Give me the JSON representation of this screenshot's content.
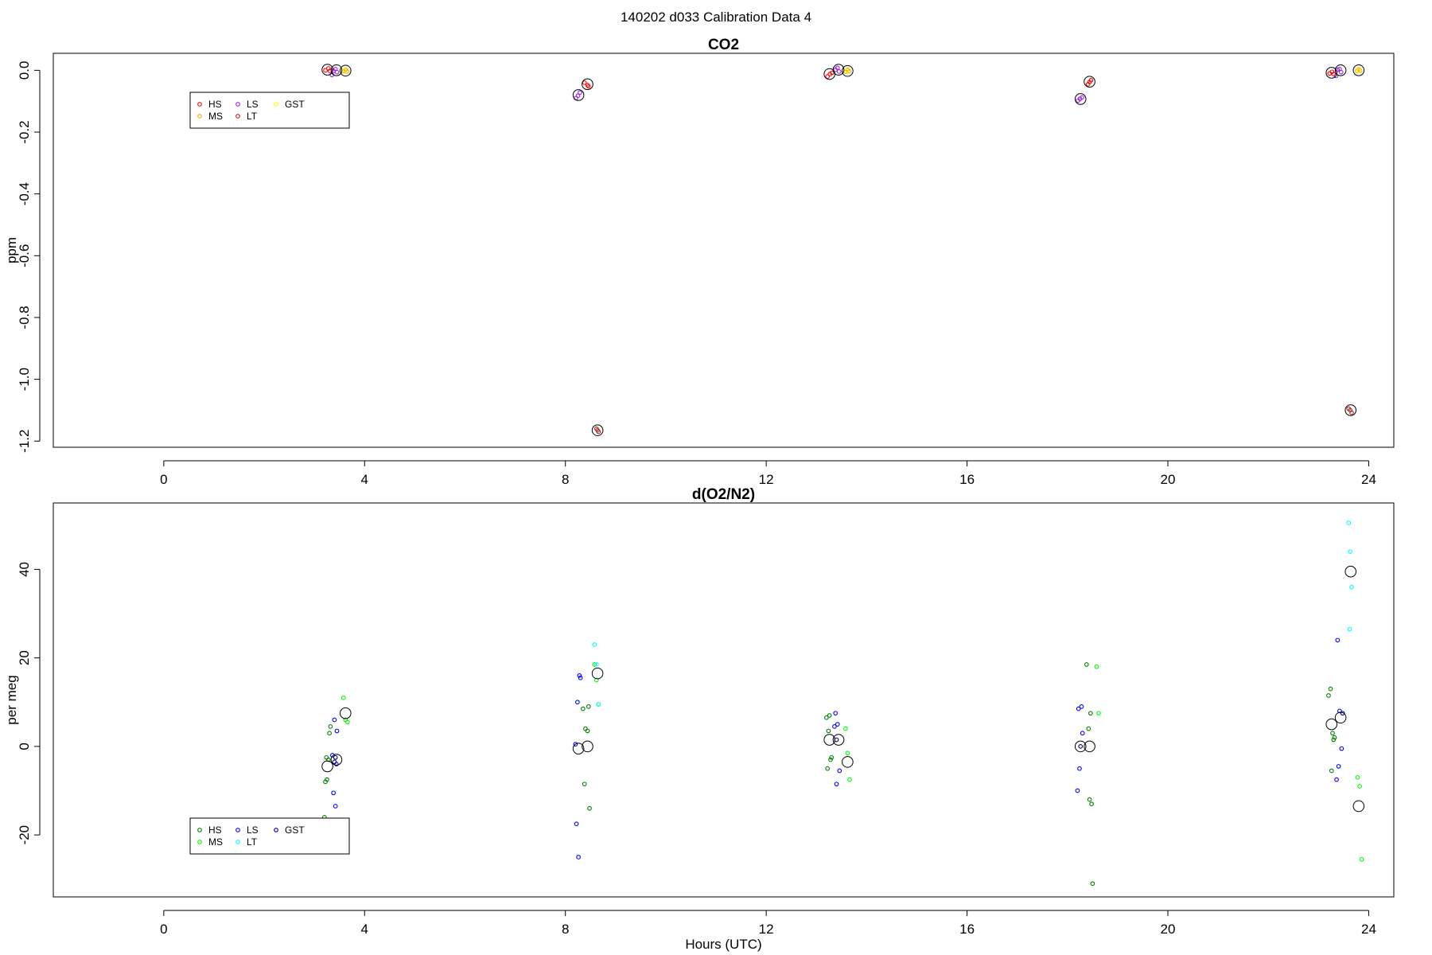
{
  "figure": {
    "title": "140202   d033   Calibration Data 4"
  },
  "chart_data": [
    {
      "type": "scatter",
      "title": "CO2",
      "xlabel": "",
      "ylabel": "ppm",
      "xlim": [
        -2.2,
        24.5
      ],
      "ylim": [
        -1.22,
        0.055
      ],
      "xticks": [
        0,
        4,
        8,
        12,
        16,
        20,
        24
      ],
      "xtick_labels": [
        "0",
        "4",
        "8",
        "12",
        "16",
        "20",
        "24"
      ],
      "yticks": [
        0.0,
        -0.2,
        -0.4,
        -0.6,
        -0.8,
        -1.0,
        -1.2
      ],
      "ytick_labels": [
        "0.0",
        "-0.2",
        "-0.4",
        "-0.6",
        "-0.8",
        "-1.0",
        "-1.2"
      ],
      "grid": false,
      "legend": {
        "placement": "upper-left",
        "entries": [
          {
            "label": "HS",
            "color": "#ff0000"
          },
          {
            "label": "MS",
            "color": "#ffa500"
          },
          {
            "label": "LS",
            "color": "#a020f0"
          },
          {
            "label": "LT",
            "color": "#b22222"
          },
          {
            "label": "GST",
            "color": "#ffff00"
          }
        ]
      },
      "series": [
        {
          "name": "HS",
          "color": "#ff0000",
          "x": [
            3.22,
            3.28,
            3.31,
            8.38,
            8.44,
            8.46,
            13.22,
            13.27,
            13.31,
            18.41,
            18.44,
            18.47,
            23.22,
            23.27,
            23.3
          ],
          "y": [
            0.0,
            0.006,
            -0.002,
            -0.04,
            -0.048,
            -0.052,
            -0.02,
            -0.012,
            -0.008,
            -0.045,
            -0.038,
            -0.032,
            -0.01,
            -0.005,
            -0.012
          ]
        },
        {
          "name": "MS",
          "color": "#ffa500",
          "x": [
            3.58,
            3.62,
            3.65,
            13.58,
            13.62,
            13.65,
            23.77,
            23.8,
            23.83
          ],
          "y": [
            -0.003,
            0.002,
            -0.004,
            -0.005,
            0.002,
            -0.003,
            -0.002,
            0.003,
            -0.001
          ]
        },
        {
          "name": "LS",
          "color": "#a020f0",
          "x": [
            3.38,
            3.42,
            3.45,
            3.35,
            8.21,
            8.25,
            8.29,
            13.38,
            13.42,
            13.45,
            18.21,
            18.25,
            18.29,
            23.38,
            23.42,
            23.45,
            23.35
          ],
          "y": [
            -0.002,
            0.004,
            -0.006,
            -0.015,
            -0.09,
            -0.082,
            -0.072,
            0.002,
            0.008,
            -0.004,
            -0.098,
            -0.092,
            -0.088,
            0.002,
            0.004,
            -0.006,
            -0.018
          ]
        },
        {
          "name": "LT",
          "color": "#b22222",
          "x": [
            8.62,
            8.64,
            8.66,
            23.6,
            23.63,
            23.66
          ],
          "y": [
            -1.16,
            -1.165,
            -1.17,
            -1.095,
            -1.1,
            -1.108
          ]
        },
        {
          "name": "GST",
          "color": "#ffff00",
          "x": [
            3.6,
            13.6,
            23.8
          ],
          "y": [
            0.0,
            -0.001,
            0.0
          ]
        }
      ],
      "means": {
        "x": [
          3.26,
          3.44,
          3.62,
          8.26,
          8.44,
          8.64,
          13.26,
          13.44,
          13.62,
          18.26,
          18.44,
          23.26,
          23.44,
          23.64,
          23.8
        ],
        "y": [
          0.002,
          0.0,
          -0.001,
          -0.08,
          -0.045,
          -1.165,
          -0.012,
          0.002,
          -0.002,
          -0.093,
          -0.037,
          -0.008,
          0.0,
          -1.1,
          0.0
        ]
      }
    },
    {
      "type": "scatter",
      "title": "d(O2/N2)",
      "xlabel": "Hours (UTC)",
      "ylabel": "per meg",
      "xlim": [
        -2.2,
        24.5
      ],
      "ylim": [
        -34,
        55
      ],
      "xticks": [
        0,
        4,
        8,
        12,
        16,
        20,
        24
      ],
      "xtick_labels": [
        "0",
        "4",
        "8",
        "12",
        "16",
        "20",
        "24"
      ],
      "yticks": [
        -20,
        0,
        20,
        40
      ],
      "ytick_labels": [
        "-20",
        "0",
        "20",
        "40"
      ],
      "grid": false,
      "legend": {
        "placement": "lower-left",
        "entries": [
          {
            "label": "HS",
            "color": "#008000"
          },
          {
            "label": "MS",
            "color": "#00ff00"
          },
          {
            "label": "LS",
            "color": "#0000ff"
          },
          {
            "label": "LT",
            "color": "#00ffff"
          },
          {
            "label": "GST",
            "color": "#000080"
          }
        ]
      },
      "series": [
        {
          "name": "HS",
          "color": "#008000",
          "x": [
            3.2,
            3.22,
            3.25,
            3.28,
            3.3,
            3.32,
            3.24,
            8.35,
            8.4,
            8.44,
            8.48,
            8.38,
            8.46,
            13.2,
            13.24,
            13.28,
            13.3,
            13.22,
            13.26,
            18.38,
            18.42,
            18.46,
            18.5,
            18.44,
            18.48,
            23.2,
            23.24,
            23.28,
            23.32,
            23.3,
            23.26
          ],
          "y": [
            -16,
            -8,
            -7.5,
            -3,
            3,
            4.5,
            -2.5,
            8.5,
            4,
            3.5,
            -14,
            -8.5,
            9,
            6.5,
            3.5,
            -3,
            -2.5,
            -5,
            7,
            18.5,
            4,
            7.5,
            -31,
            -12,
            -13,
            11.5,
            13,
            3,
            2,
            1.5,
            -5.5
          ]
        },
        {
          "name": "MS",
          "color": "#00ff00",
          "x": [
            3.58,
            3.62,
            3.66,
            8.58,
            8.62,
            8.66,
            13.58,
            13.62,
            13.66,
            18.58,
            18.62,
            23.78,
            23.82,
            23.86
          ],
          "y": [
            11,
            6,
            5.5,
            18.5,
            15,
            9.5,
            4,
            -1.5,
            -7.5,
            18,
            7.5,
            -7,
            -9,
            -25.5
          ]
        },
        {
          "name": "LS",
          "color": "#0000ff",
          "x": [
            3.38,
            3.42,
            3.45,
            3.4,
            3.36,
            3.44,
            8.22,
            8.26,
            8.3,
            8.24,
            8.2,
            8.28,
            13.38,
            13.42,
            13.46,
            13.4,
            13.36,
            18.2,
            18.24,
            18.28,
            18.3,
            18.22,
            23.38,
            23.42,
            23.46,
            23.4,
            23.36
          ],
          "y": [
            -10.5,
            -13.5,
            3.5,
            6,
            -2,
            -4,
            -17.5,
            -25,
            15.5,
            10,
            0.5,
            16,
            7.5,
            5,
            -5.5,
            -8.5,
            4.5,
            -10,
            -5,
            9,
            3,
            8.5,
            24,
            8,
            -0.5,
            -4.5,
            -7.5
          ]
        },
        {
          "name": "LT",
          "color": "#00ffff",
          "x": [
            8.58,
            8.62,
            8.66,
            23.6,
            23.63,
            23.66,
            23.62
          ],
          "y": [
            23,
            18.5,
            9.5,
            50.5,
            44,
            36,
            26.5
          ]
        },
        {
          "name": "GST",
          "color": "#000080",
          "x": [
            3.42,
            3.4,
            13.4,
            18.26,
            23.48
          ],
          "y": [
            -2.5,
            -3.5,
            1.5,
            0,
            7.5
          ]
        }
      ],
      "means": {
        "x": [
          3.26,
          3.44,
          3.62,
          8.26,
          8.44,
          8.64,
          13.26,
          13.44,
          13.62,
          18.26,
          18.44,
          23.26,
          23.44,
          23.64,
          23.8
        ],
        "y": [
          -4.5,
          -3,
          7.5,
          -0.5,
          0,
          16.5,
          1.5,
          1.5,
          -3.5,
          0,
          0,
          5,
          6.5,
          39.5,
          -13.5
        ]
      }
    }
  ]
}
